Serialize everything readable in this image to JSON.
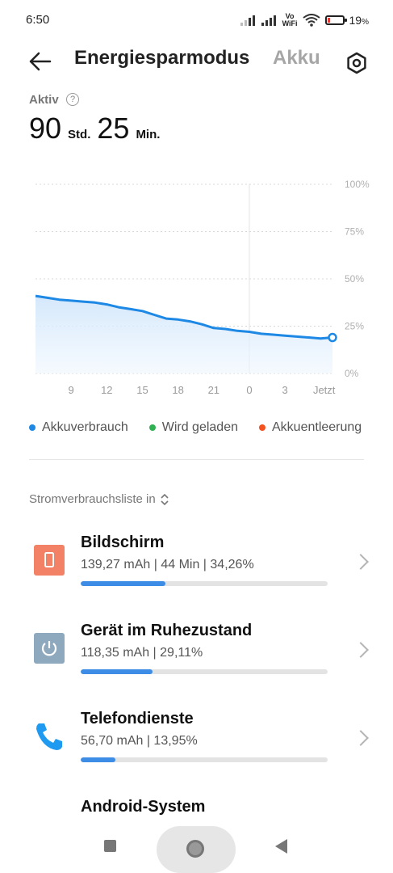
{
  "status_bar": {
    "time": "6:50",
    "volte_top": "Vo",
    "volte_bottom": "WiFi",
    "battery_percent": "19",
    "battery_suffix": "%",
    "battery_level": 0.19
  },
  "header": {
    "title": "Energiesparmodus",
    "tab_akku": "Akku",
    "icons": {
      "back": "back-arrow-icon",
      "settings": "gear-icon"
    }
  },
  "active": {
    "label": "Aktiv",
    "help_glyph": "?",
    "hours": "90",
    "hours_unit": "Std.",
    "minutes": "25",
    "minutes_unit": "Min."
  },
  "chart_data": {
    "type": "area",
    "x_tick_labels": [
      "9",
      "12",
      "15",
      "18",
      "21",
      "0",
      "3",
      "Jetzt"
    ],
    "y_tick_labels": [
      "100%",
      "75%",
      "50%",
      "25%",
      "0%"
    ],
    "ylim": [
      0,
      100
    ],
    "series": [
      {
        "name": "Akkuverbrauch",
        "color": "#1e88e5",
        "x": [
          6,
          7,
          8,
          9,
          10,
          11,
          12,
          13,
          14,
          15,
          16,
          17,
          18,
          19,
          20,
          21,
          22,
          23,
          24,
          25,
          26,
          27,
          28,
          29,
          30,
          31
        ],
        "values": [
          41,
          40,
          39,
          38.5,
          38,
          37.5,
          36.5,
          35,
          34,
          33,
          31,
          29,
          28.5,
          27.5,
          26,
          24,
          23.5,
          22.5,
          22,
          21,
          20.5,
          20,
          19.5,
          19,
          18.5,
          19
        ]
      }
    ]
  },
  "legend": [
    {
      "label": "Akkuverbrauch",
      "color": "#1e88e5"
    },
    {
      "label": "Wird geladen",
      "color": "#2fb153"
    },
    {
      "label": "Akkuentleerung",
      "color": "#f4511e"
    }
  ],
  "list_header": "Stromverbrauchsliste in",
  "items": [
    {
      "title": "Bildschirm",
      "subtitle": "139,27 mAh | 44 Min  | 34,26%",
      "fraction": 0.3426,
      "icon": "screen-icon",
      "icon_color": "#f28165"
    },
    {
      "title": "Gerät im Ruhezustand",
      "subtitle": "118,35 mAh | 29,11%",
      "fraction": 0.2911,
      "icon": "power-icon",
      "icon_color": "#8ea8bd"
    },
    {
      "title": "Telefondienste",
      "subtitle": "56,70 mAh | 13,95%",
      "fraction": 0.1395,
      "icon": "phone-icon",
      "icon_color": "#1e9bf0"
    },
    {
      "title": "Android-System",
      "subtitle": "",
      "fraction": 0,
      "icon": "android-gear-icon",
      "icon_color": "#4a4a4a"
    }
  ],
  "nav": {
    "icons": {
      "recents": "recents-square-icon",
      "home": "home-circle-icon",
      "back": "back-triangle-icon"
    }
  }
}
